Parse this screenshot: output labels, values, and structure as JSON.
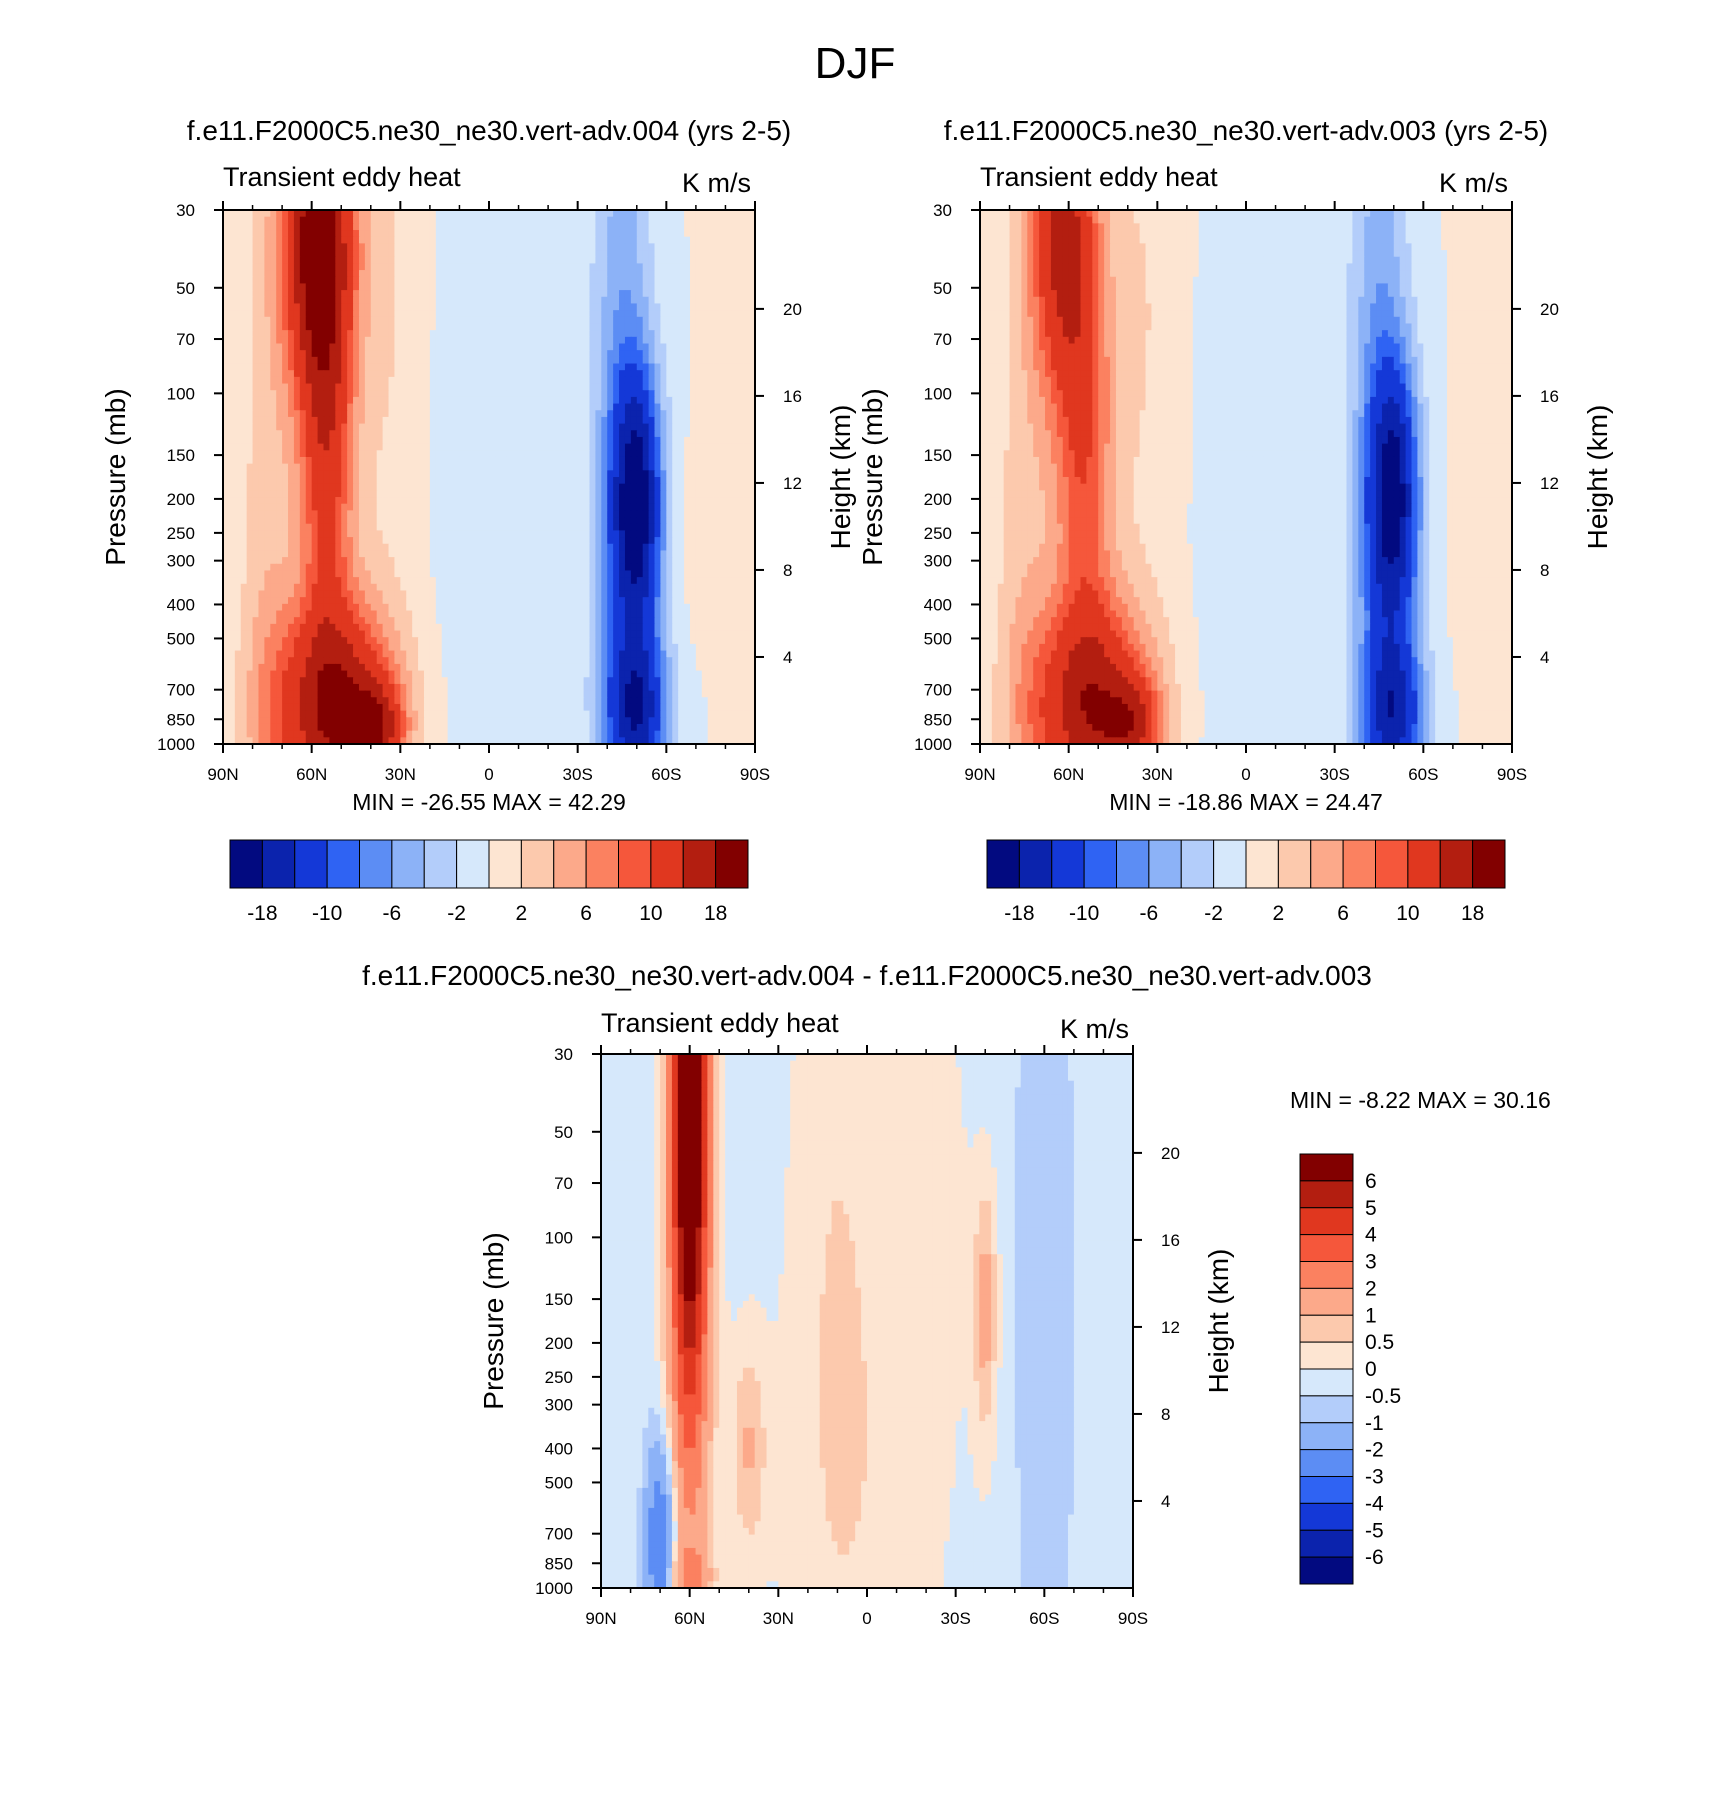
{
  "figure_title": "DJF",
  "colors": {
    "positive": [
      "#fde5d2",
      "#fcc9ad",
      "#fca98a",
      "#fb8160",
      "#f5573b",
      "#e0371f",
      "#b31e10",
      "#820000"
    ],
    "negative": [
      "#d6e8fb",
      "#b3cdfa",
      "#8cb2f7",
      "#5c8df4",
      "#2f63f3",
      "#1438d7",
      "#0b23ad",
      "#020a80"
    ]
  },
  "chart_data": [
    {
      "id": "panel-004",
      "type": "heatmap",
      "title": "f.e11.F2000C5.ne30_ne30.vert-adv.004 (yrs 2-5)",
      "left_label": "Transient eddy heat",
      "right_label": "K m/s",
      "xlabel": "",
      "ylabel": "Pressure (mb)",
      "y2label": "Height (km)",
      "x_ticks": [
        "90N",
        "60N",
        "30N",
        "0",
        "30S",
        "60S",
        "90S"
      ],
      "xlim": [
        90,
        -90
      ],
      "y_ticks": [
        "30",
        "50",
        "70",
        "100",
        "150",
        "200",
        "250",
        "300",
        "400",
        "500",
        "700",
        "850",
        "1000"
      ],
      "ylim": [
        30,
        1000
      ],
      "y2_ticks": [
        "20",
        "16",
        "12",
        "8",
        "4"
      ],
      "min_max": "MIN = -26.55  MAX =  42.29",
      "colorbar": {
        "orientation": "horizontal",
        "labels": [
          "-18",
          "-10",
          "-6",
          "-2",
          "2",
          "6",
          "10",
          "18"
        ]
      },
      "features": [
        {
          "lat": 58,
          "p": 35,
          "v": 20,
          "dlat": 12,
          "dlog": 0.45
        },
        {
          "lat": 55,
          "p": 150,
          "v": 11,
          "dlat": 9,
          "dlog": 0.55
        },
        {
          "lat": 52,
          "p": 800,
          "v": 18,
          "dlat": 20,
          "dlog": 0.3
        },
        {
          "lat": 38,
          "p": 900,
          "v": 10,
          "dlat": 9,
          "dlog": 0.12
        },
        {
          "lat": 75,
          "p": 400,
          "v": 3,
          "dlat": 10,
          "dlog": 1.2
        },
        {
          "lat": 35,
          "p": 60,
          "v": 2,
          "dlat": 12,
          "dlog": 0.9
        },
        {
          "lat": -50,
          "p": 200,
          "v": -16,
          "dlat": 8,
          "dlog": 0.35
        },
        {
          "lat": -50,
          "p": 820,
          "v": -13,
          "dlat": 10,
          "dlog": 0.2
        },
        {
          "lat": -45,
          "p": 60,
          "v": -5,
          "dlat": 10,
          "dlog": 0.9
        },
        {
          "lat": -48,
          "p": 450,
          "v": -6,
          "dlat": 11,
          "dlog": 0.6
        },
        {
          "lat": -5,
          "p": 300,
          "v": -1.5,
          "dlat": 22,
          "dlog": 1.6
        },
        {
          "lat": -73,
          "p": 250,
          "v": 1.5,
          "dlat": 8,
          "dlog": 0.25
        }
      ]
    },
    {
      "id": "panel-003",
      "type": "heatmap",
      "title": "f.e11.F2000C5.ne30_ne30.vert-adv.003 (yrs 2-5)",
      "left_label": "Transient eddy heat",
      "right_label": "K m/s",
      "xlabel": "",
      "ylabel": "Pressure (mb)",
      "y2label": "Height (km)",
      "x_ticks": [
        "90N",
        "60N",
        "30N",
        "0",
        "30S",
        "60S",
        "90S"
      ],
      "xlim": [
        90,
        -90
      ],
      "y_ticks": [
        "30",
        "50",
        "70",
        "100",
        "150",
        "200",
        "250",
        "300",
        "400",
        "500",
        "700",
        "850",
        "1000"
      ],
      "ylim": [
        30,
        1000
      ],
      "y2_ticks": [
        "20",
        "16",
        "12",
        "8",
        "4"
      ],
      "min_max": "MIN = -18.86  MAX =  24.47",
      "colorbar": {
        "orientation": "horizontal",
        "labels": [
          "-18",
          "-10",
          "-6",
          "-2",
          "2",
          "6",
          "10",
          "18"
        ]
      },
      "features": [
        {
          "lat": 62,
          "p": 35,
          "v": 14,
          "dlat": 11,
          "dlog": 0.45
        },
        {
          "lat": 55,
          "p": 150,
          "v": 9,
          "dlat": 10,
          "dlog": 0.6
        },
        {
          "lat": 52,
          "p": 800,
          "v": 16,
          "dlat": 20,
          "dlog": 0.3
        },
        {
          "lat": 38,
          "p": 880,
          "v": 8,
          "dlat": 9,
          "dlog": 0.12
        },
        {
          "lat": 75,
          "p": 400,
          "v": 3,
          "dlat": 10,
          "dlog": 1.2
        },
        {
          "lat": 35,
          "p": 60,
          "v": 2,
          "dlat": 14,
          "dlog": 0.9
        },
        {
          "lat": -50,
          "p": 190,
          "v": -15,
          "dlat": 8,
          "dlog": 0.35
        },
        {
          "lat": -50,
          "p": 830,
          "v": -12,
          "dlat": 10,
          "dlog": 0.2
        },
        {
          "lat": -45,
          "p": 60,
          "v": -5,
          "dlat": 10,
          "dlog": 0.9
        },
        {
          "lat": -48,
          "p": 450,
          "v": -6,
          "dlat": 11,
          "dlog": 0.6
        },
        {
          "lat": -5,
          "p": 300,
          "v": -1.5,
          "dlat": 22,
          "dlog": 1.6
        },
        {
          "lat": -78,
          "p": 230,
          "v": 1.5,
          "dlat": 8,
          "dlog": 0.4
        }
      ]
    },
    {
      "id": "panel-diff",
      "type": "heatmap",
      "title": "f.e11.F2000C5.ne30_ne30.vert-adv.004 - f.e11.F2000C5.ne30_ne30.vert-adv.003",
      "left_label": "Transient eddy heat",
      "right_label": "K m/s",
      "xlabel": "",
      "ylabel": "Pressure (mb)",
      "y2label": "Height (km)",
      "x_ticks": [
        "90N",
        "60N",
        "30N",
        "0",
        "30S",
        "60S",
        "90S"
      ],
      "xlim": [
        90,
        -90
      ],
      "y_ticks": [
        "30",
        "50",
        "70",
        "100",
        "150",
        "200",
        "250",
        "300",
        "400",
        "500",
        "700",
        "850",
        "1000"
      ],
      "ylim": [
        30,
        1000
      ],
      "y2_ticks": [
        "20",
        "16",
        "12",
        "8",
        "4"
      ],
      "min_max": "MIN =  -8.22  MAX =  30.16",
      "colorbar": {
        "orientation": "vertical",
        "labels": [
          "6",
          "5",
          "4",
          "3",
          "2",
          "1",
          "0.5",
          "0",
          "-0.5",
          "-1",
          "-2",
          "-3",
          "-4",
          "-5",
          "-6"
        ]
      },
      "features": [
        {
          "lat": 60,
          "p": 35,
          "v": 6.5,
          "dlat": 6,
          "dlog": 0.7
        },
        {
          "lat": 60,
          "p": 150,
          "v": 3.5,
          "dlat": 7,
          "dlog": 0.8
        },
        {
          "lat": 70,
          "p": 750,
          "v": -3,
          "dlat": 5,
          "dlog": 0.3
        },
        {
          "lat": 60,
          "p": 920,
          "v": 1.5,
          "dlat": 8,
          "dlog": 0.08
        },
        {
          "lat": 40,
          "p": 400,
          "v": 1.2,
          "dlat": 6,
          "dlog": 0.3
        },
        {
          "lat": -40,
          "p": 160,
          "v": 1.5,
          "dlat": 4,
          "dlog": 0.35
        },
        {
          "lat": -60,
          "p": 150,
          "v": -0.8,
          "dlat": 10,
          "dlog": 1.5
        },
        {
          "lat": 10,
          "p": 100,
          "v": 0.6,
          "dlat": 15,
          "dlog": 1.2
        },
        {
          "lat": -20,
          "p": 70,
          "v": 0.6,
          "dlat": 12,
          "dlog": 0.6
        },
        {
          "lat": 0,
          "p": 600,
          "v": 0.4,
          "dlat": 30,
          "dlog": 0.8
        }
      ]
    }
  ]
}
